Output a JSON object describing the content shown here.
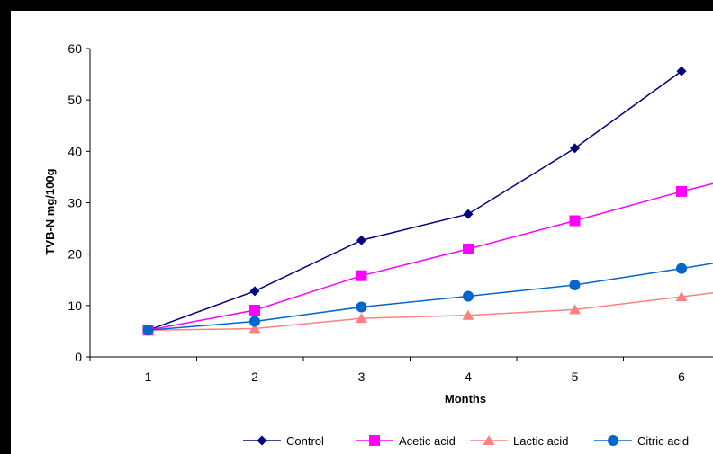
{
  "chart_data": {
    "type": "line",
    "title": "",
    "xlabel": "Months",
    "ylabel": "TVB-N mg/100g",
    "categories": [
      "1",
      "2",
      "3",
      "4",
      "5",
      "6"
    ],
    "x": [
      1,
      2,
      3,
      4,
      5,
      6,
      6.35
    ],
    "ylim": [
      0,
      60
    ],
    "yticks": [
      "0",
      "10",
      "20",
      "30",
      "40",
      "50",
      "60"
    ],
    "grid": false,
    "legend_position": "bottom",
    "series": [
      {
        "name": "Control",
        "values": [
          5.2,
          12.8,
          22.7,
          27.8,
          40.6,
          55.6
        ],
        "color": "#000080",
        "marker": "diamond"
      },
      {
        "name": "Acetic acid",
        "values": [
          5.2,
          9.1,
          15.8,
          21.0,
          26.5,
          32.2,
          34.0
        ],
        "color": "#FF00FF",
        "marker": "square"
      },
      {
        "name": "Lactic acid",
        "values": [
          5.2,
          5.5,
          7.5,
          8.1,
          9.2,
          11.7,
          12.6
        ],
        "color": "#FF8080",
        "marker": "triangle"
      },
      {
        "name": "Citric acid",
        "values": [
          5.2,
          6.9,
          9.7,
          11.8,
          14.0,
          17.2,
          18.4
        ],
        "color": "#0066CC",
        "marker": "circle"
      }
    ]
  }
}
